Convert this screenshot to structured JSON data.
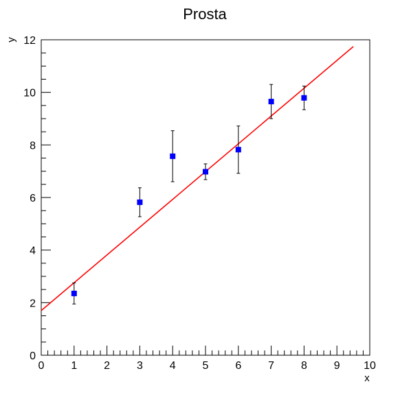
{
  "chart_data": {
    "type": "scatter",
    "title": "Prosta",
    "xlabel": "x",
    "ylabel": "y",
    "xlim": [
      0,
      10
    ],
    "ylim": [
      0,
      12
    ],
    "x_ticks": [
      "0",
      "1",
      "2",
      "3",
      "4",
      "5",
      "6",
      "7",
      "8",
      "9",
      "10"
    ],
    "y_ticks": [
      "0",
      "2",
      "4",
      "6",
      "8",
      "10",
      "12"
    ],
    "grid": false,
    "legend": "none",
    "series": [
      {
        "points": [
          {
            "x": 1,
            "y": 2.35,
            "err": 0.4
          },
          {
            "x": 3,
            "y": 5.82,
            "err": 0.55
          },
          {
            "x": 4,
            "y": 7.57,
            "err": 0.97
          },
          {
            "x": 5,
            "y": 6.98,
            "err": 0.3
          },
          {
            "x": 6,
            "y": 7.82,
            "err": 0.9
          },
          {
            "x": 7,
            "y": 9.65,
            "err": 0.65
          },
          {
            "x": 8,
            "y": 9.79,
            "err": 0.45
          }
        ],
        "marker_color": "#0000ff"
      }
    ],
    "fit_line": {
      "x_range": [
        0,
        9.5
      ],
      "intercept": 1.7,
      "slope": 1.057,
      "color": "#ff0000"
    }
  }
}
